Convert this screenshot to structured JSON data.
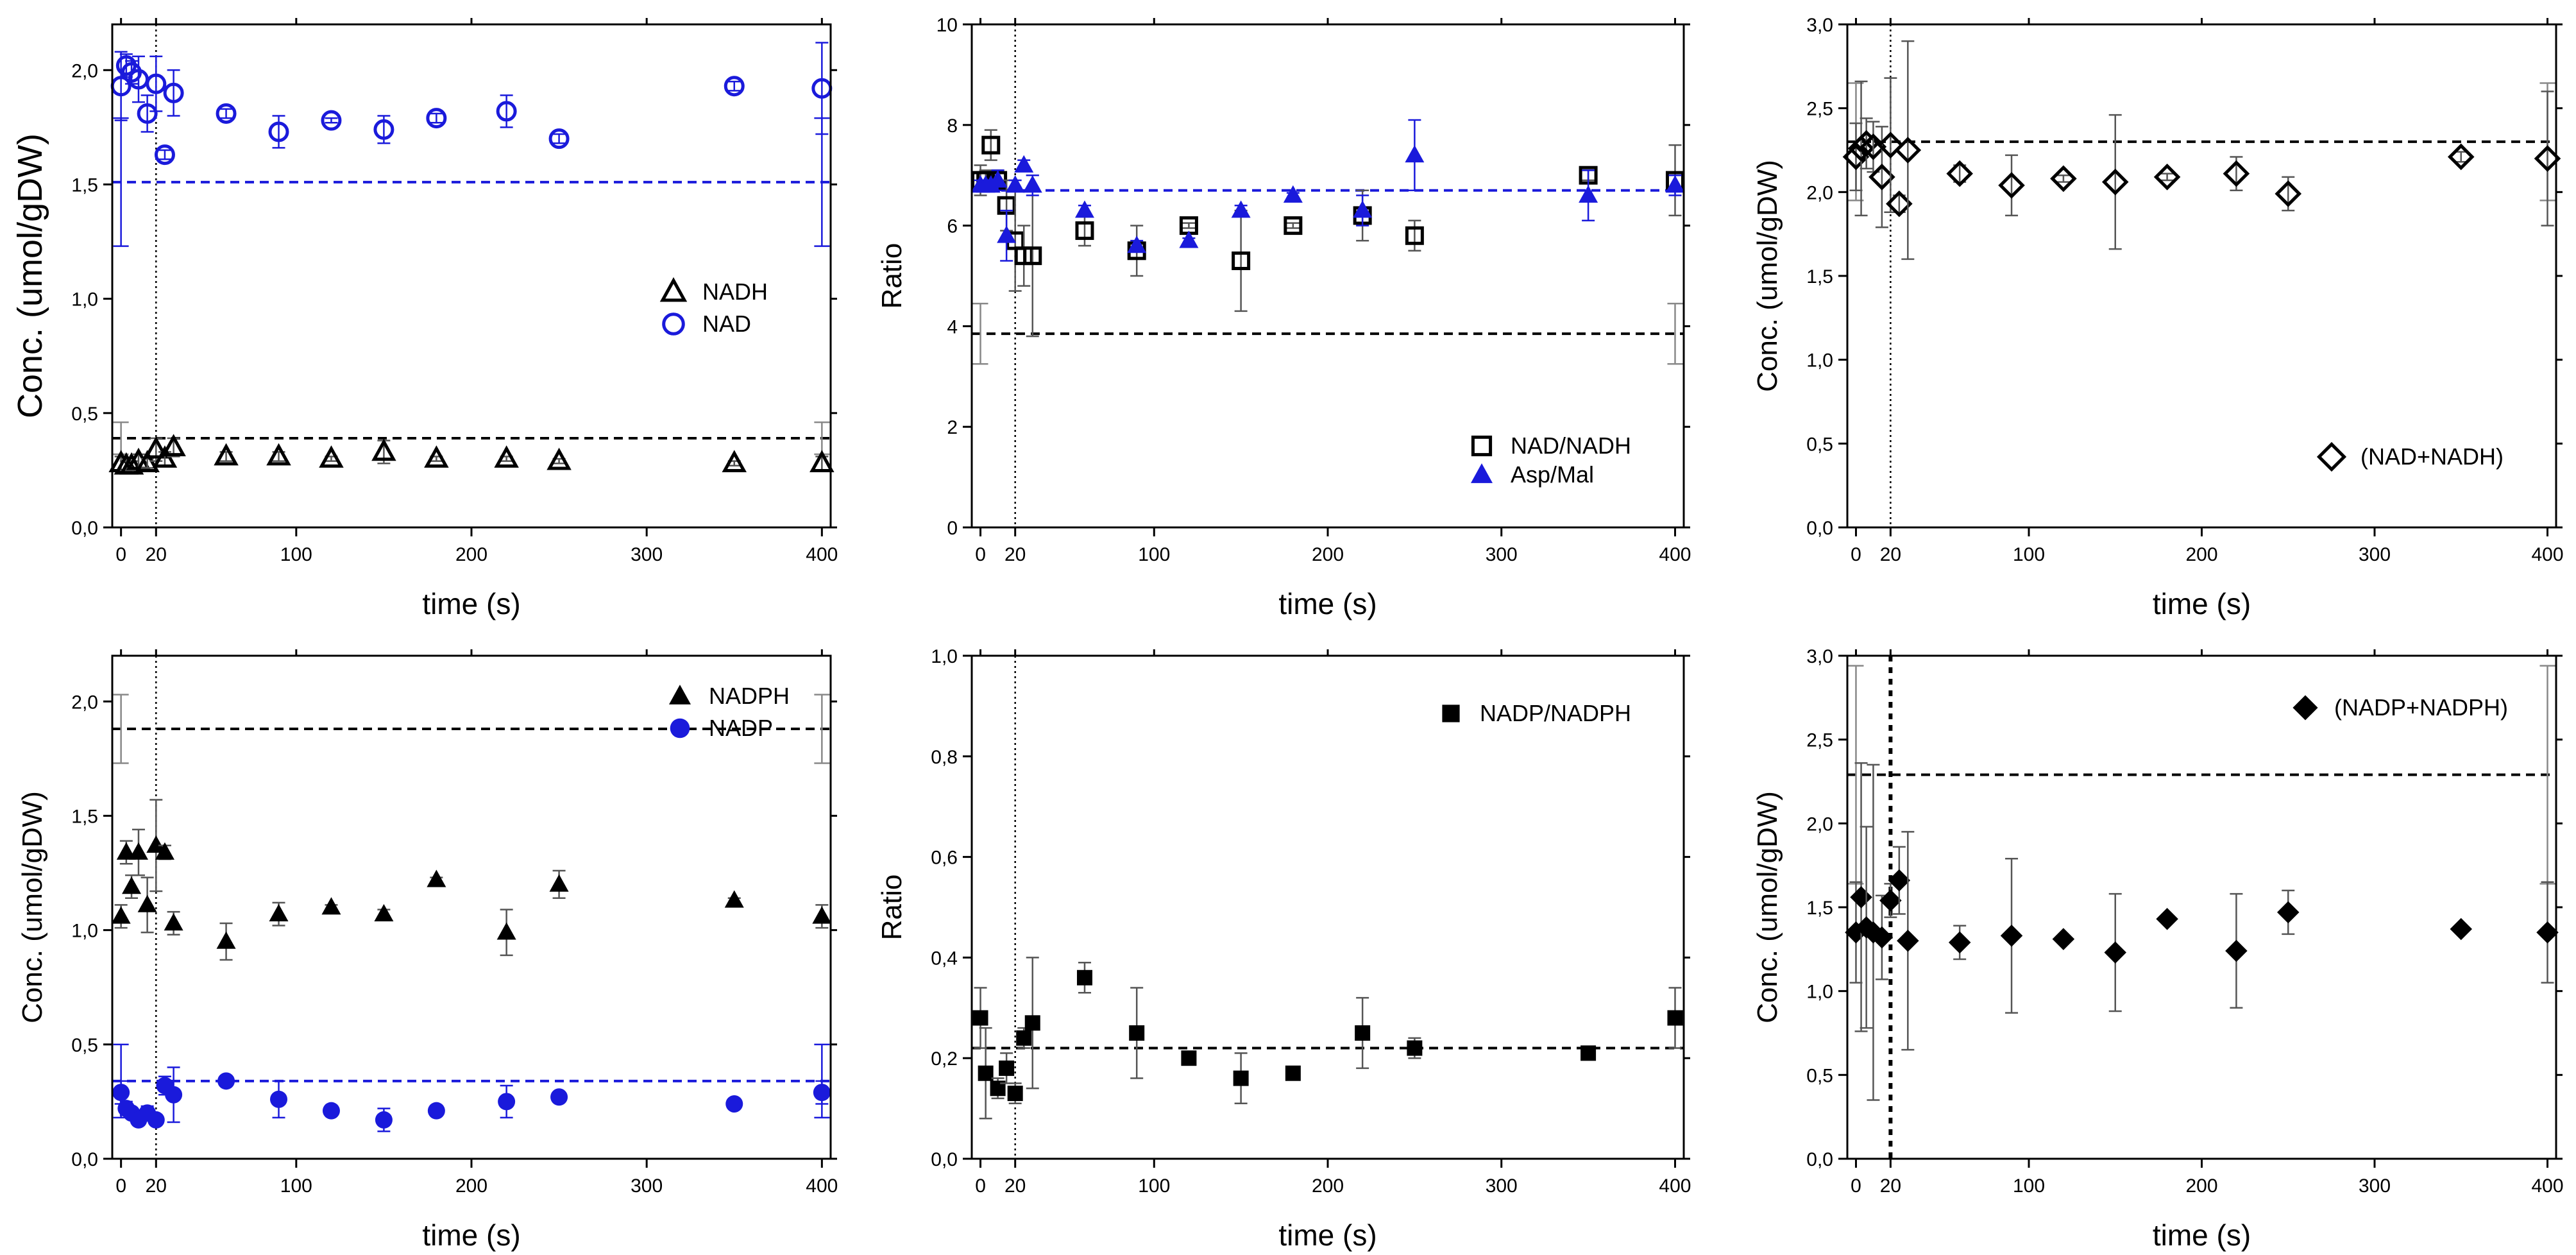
{
  "chart_data": [
    {
      "type": "scatter",
      "xlabel": "time (s)",
      "ylabel": "Conc. (umol/gDW)",
      "xlim": [
        -5,
        405
      ],
      "ylim": [
        0,
        2.2
      ],
      "xticks": [
        0,
        20,
        100,
        200,
        300,
        400
      ],
      "xtick_labels": [
        "0",
        "20",
        "100",
        "200",
        "300",
        "400"
      ],
      "yticks": [
        0,
        0.5,
        1.0,
        1.5,
        2.0
      ],
      "ytick_labels": [
        "0,0",
        "0,5",
        "1,0",
        "1,5",
        "2,0"
      ],
      "legend_position": "center-right",
      "vline_x": 20,
      "series": [
        {
          "name": "NADH",
          "marker": "triangle-open",
          "color": "#000000",
          "x": [
            0,
            3,
            6,
            10,
            15,
            20,
            25,
            30,
            60,
            90,
            120,
            150,
            180,
            220,
            250,
            350,
            400
          ],
          "y": [
            0.28,
            0.27,
            0.27,
            0.29,
            0.28,
            0.34,
            0.3,
            0.35,
            0.31,
            0.31,
            0.3,
            0.33,
            0.3,
            0.3,
            0.29,
            0.28,
            0.28
          ],
          "err": [
            0.03,
            0.02,
            0.02,
            0.03,
            0.02,
            0.05,
            0.03,
            0.04,
            0.02,
            0.02,
            0.01,
            0.05,
            0.01,
            0.01,
            0.01,
            0.01,
            0.03
          ],
          "baseline": 0.39,
          "baseline_err": 0.07
        },
        {
          "name": "NAD",
          "marker": "circle-open",
          "color": "#1a1adb",
          "x": [
            0,
            3,
            6,
            10,
            15,
            20,
            25,
            30,
            60,
            90,
            120,
            150,
            180,
            220,
            250,
            350,
            400
          ],
          "y": [
            1.93,
            2.02,
            1.99,
            1.96,
            1.81,
            1.94,
            1.63,
            1.9,
            1.81,
            1.73,
            1.78,
            1.74,
            1.79,
            1.82,
            1.7,
            1.93,
            1.92
          ],
          "err": [
            0.15,
            0.05,
            0.05,
            0.1,
            0.08,
            0.12,
            0.02,
            0.1,
            0.02,
            0.07,
            0.01,
            0.06,
            0.02,
            0.07,
            0.02,
            0.02,
            0.2
          ],
          "baseline": 1.51,
          "baseline_err": 0.28
        }
      ]
    },
    {
      "type": "scatter",
      "xlabel": "time (s)",
      "ylabel": "Ratio",
      "xlim": [
        -5,
        405
      ],
      "ylim": [
        0,
        10
      ],
      "xticks": [
        0,
        20,
        100,
        200,
        300,
        400
      ],
      "xtick_labels": [
        "0",
        "20",
        "100",
        "200",
        "300",
        "400"
      ],
      "yticks": [
        0,
        2,
        4,
        6,
        8,
        10
      ],
      "ytick_labels": [
        "0",
        "2",
        "4",
        "6",
        "8",
        "10"
      ],
      "legend_position": "bottom-right",
      "vline_x": 20,
      "series": [
        {
          "name": "NAD/NADH",
          "marker": "square-open",
          "color": "#000000",
          "x": [
            0,
            3,
            6,
            10,
            15,
            20,
            25,
            30,
            60,
            90,
            120,
            150,
            180,
            220,
            250,
            350,
            400
          ],
          "y": [
            6.9,
            6.9,
            7.6,
            6.9,
            6.4,
            5.7,
            5.4,
            5.4,
            5.9,
            5.5,
            6.0,
            5.3,
            6.0,
            6.2,
            5.8,
            7.0,
            6.9
          ],
          "err": [
            0.3,
            0.2,
            0.3,
            0.2,
            0.5,
            1.0,
            0.6,
            1.6,
            0.3,
            0.5,
            0.05,
            1.0,
            0.05,
            0.5,
            0.3,
            0.1,
            0.7
          ],
          "baseline": 3.85,
          "baseline_err": 0.6
        },
        {
          "name": "Asp/Mal",
          "marker": "triangle-filled",
          "color": "#1a1adb",
          "x": [
            0,
            3,
            6,
            10,
            15,
            20,
            25,
            30,
            60,
            90,
            120,
            150,
            180,
            220,
            250,
            350,
            400
          ],
          "y": [
            6.8,
            6.8,
            6.8,
            6.9,
            5.8,
            6.8,
            7.2,
            6.8,
            6.3,
            5.6,
            5.7,
            6.3,
            6.6,
            6.3,
            7.4,
            6.6,
            6.8
          ],
          "err": [
            0.1,
            0.1,
            0.1,
            0.2,
            0.5,
            0.1,
            0.1,
            0.2,
            0.1,
            0.1,
            0.05,
            0.1,
            0.05,
            0.3,
            0.7,
            0.5,
            0.2
          ],
          "baseline": 6.7,
          "baseline_err": 0
        }
      ]
    },
    {
      "type": "scatter",
      "xlabel": "time (s)",
      "ylabel": "Conc. (umol/gDW)",
      "xlim": [
        -5,
        405
      ],
      "ylim": [
        0,
        3.0
      ],
      "xticks": [
        0,
        20,
        100,
        200,
        300,
        400
      ],
      "xtick_labels": [
        "0",
        "20",
        "100",
        "200",
        "300",
        "400"
      ],
      "yticks": [
        0,
        0.5,
        1.0,
        1.5,
        2.0,
        2.5,
        3.0
      ],
      "ytick_labels": [
        "0,0",
        "0,5",
        "1,0",
        "1,5",
        "2,0",
        "2,5",
        "3,0"
      ],
      "legend_position": "bottom-right",
      "vline_x": 20,
      "series": [
        {
          "name": "(NAD+NADH)",
          "marker": "diamond-open",
          "color": "#000000",
          "x": [
            0,
            3,
            6,
            10,
            15,
            20,
            25,
            30,
            60,
            90,
            120,
            150,
            180,
            220,
            250,
            350,
            400
          ],
          "y": [
            2.21,
            2.26,
            2.29,
            2.27,
            2.09,
            2.28,
            1.93,
            2.25,
            2.11,
            2.04,
            2.08,
            2.06,
            2.09,
            2.11,
            1.99,
            2.21,
            2.2
          ],
          "err": [
            0.2,
            0.4,
            0.15,
            0.15,
            0.3,
            0.4,
            0.05,
            0.65,
            0.05,
            0.18,
            0.02,
            0.4,
            0.02,
            0.1,
            0.1,
            0.03,
            0.4
          ],
          "baseline": 2.3,
          "baseline_err": 0.35
        }
      ]
    },
    {
      "type": "scatter",
      "xlabel": "time (s)",
      "ylabel": "Conc. (umol/gDW)",
      "xlim": [
        -5,
        405
      ],
      "ylim": [
        0,
        2.2
      ],
      "xticks": [
        0,
        20,
        100,
        200,
        300,
        400
      ],
      "xtick_labels": [
        "0",
        "20",
        "100",
        "200",
        "300",
        "400"
      ],
      "yticks": [
        0,
        0.5,
        1.0,
        1.5,
        2.0
      ],
      "ytick_labels": [
        "0,0",
        "0,5",
        "1,0",
        "1,5",
        "2,0"
      ],
      "legend_position": "top-right",
      "vline_x": 20,
      "series": [
        {
          "name": "NADPH",
          "marker": "triangle-filled",
          "color": "#000000",
          "x": [
            0,
            3,
            6,
            10,
            15,
            20,
            25,
            30,
            60,
            90,
            120,
            150,
            180,
            220,
            250,
            350,
            400
          ],
          "y": [
            1.06,
            1.34,
            1.19,
            1.34,
            1.11,
            1.37,
            1.34,
            1.03,
            0.95,
            1.07,
            1.1,
            1.07,
            1.22,
            0.99,
            1.2,
            1.13,
            1.06
          ],
          "err": [
            0.05,
            0.05,
            0.05,
            0.1,
            0.12,
            0.2,
            0.03,
            0.05,
            0.08,
            0.05,
            0.01,
            0.02,
            0.01,
            0.1,
            0.06,
            0.01,
            0.05
          ],
          "baseline": 1.88,
          "baseline_err": 0.15
        },
        {
          "name": "NADP",
          "marker": "circle-filled",
          "color": "#1a1adb",
          "x": [
            0,
            3,
            6,
            10,
            15,
            20,
            25,
            30,
            60,
            90,
            120,
            150,
            180,
            220,
            250,
            350,
            400
          ],
          "y": [
            0.29,
            0.22,
            0.2,
            0.17,
            0.2,
            0.17,
            0.32,
            0.28,
            0.34,
            0.26,
            0.21,
            0.17,
            0.21,
            0.25,
            0.27,
            0.24,
            0.29
          ],
          "err": [
            0.05,
            0.03,
            0.02,
            0.02,
            0.03,
            0.02,
            0.04,
            0.12,
            0.01,
            0.08,
            0.01,
            0.05,
            0.01,
            0.07,
            0.01,
            0.01,
            0.05
          ],
          "baseline": 0.34,
          "baseline_err": 0.16
        }
      ]
    },
    {
      "type": "scatter",
      "xlabel": "time (s)",
      "ylabel": "Ratio",
      "xlim": [
        -5,
        405
      ],
      "ylim": [
        0,
        1.0
      ],
      "xticks": [
        0,
        20,
        100,
        200,
        300,
        400
      ],
      "xtick_labels": [
        "0",
        "20",
        "100",
        "200",
        "300",
        "400"
      ],
      "yticks": [
        0,
        0.2,
        0.4,
        0.6,
        0.8,
        1.0
      ],
      "ytick_labels": [
        "0,0",
        "0,2",
        "0,4",
        "0,6",
        "0,8",
        "1,0"
      ],
      "legend_position": "top-right",
      "vline_x": 20,
      "series": [
        {
          "name": "NADP/NADPH",
          "marker": "square-filled",
          "color": "#000000",
          "x": [
            0,
            3,
            10,
            15,
            20,
            25,
            30,
            60,
            90,
            120,
            150,
            180,
            220,
            250,
            350,
            400
          ],
          "y": [
            0.28,
            0.17,
            0.14,
            0.18,
            0.13,
            0.24,
            0.27,
            0.36,
            0.25,
            0.2,
            0.16,
            0.17,
            0.25,
            0.22,
            0.21,
            0.28
          ],
          "err": [
            0.06,
            0.09,
            0.02,
            0.03,
            0.02,
            0.02,
            0.13,
            0.03,
            0.09,
            0.005,
            0.05,
            0.005,
            0.07,
            0.02,
            0.005,
            0.06
          ],
          "baseline": 0.22,
          "baseline_err": 0
        }
      ]
    },
    {
      "type": "scatter",
      "xlabel": "time (s)",
      "ylabel": "Conc. (umol/gDW)",
      "xlim": [
        -5,
        405
      ],
      "ylim": [
        0,
        3.0
      ],
      "xticks": [
        0,
        20,
        100,
        200,
        300,
        400
      ],
      "xtick_labels": [
        "0",
        "20",
        "100",
        "200",
        "300",
        "400"
      ],
      "yticks": [
        0,
        0.5,
        1.0,
        1.5,
        2.0,
        2.5,
        3.0
      ],
      "ytick_labels": [
        "0,0",
        "0,5",
        "1,0",
        "1,5",
        "2,0",
        "2,5",
        "3,0"
      ],
      "legend_position": "top-right",
      "vline_x": 20,
      "series": [
        {
          "name": "(NADP+NADPH)",
          "marker": "diamond-filled",
          "color": "#000000",
          "x": [
            0,
            3,
            6,
            10,
            15,
            20,
            25,
            30,
            60,
            90,
            120,
            150,
            180,
            220,
            250,
            350,
            400
          ],
          "y": [
            1.35,
            1.56,
            1.38,
            1.35,
            1.32,
            1.54,
            1.66,
            1.3,
            1.29,
            1.33,
            1.31,
            1.23,
            1.43,
            1.24,
            1.47,
            1.37,
            1.35
          ],
          "err": [
            0.3,
            0.8,
            0.6,
            1.0,
            0.25,
            0.1,
            0.2,
            0.65,
            0.1,
            0.46,
            0.02,
            0.35,
            0.02,
            0.34,
            0.13,
            0.02,
            0.3
          ],
          "baseline": 2.29,
          "baseline_err": 0.65
        }
      ]
    }
  ]
}
